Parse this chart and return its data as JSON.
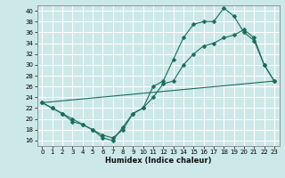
{
  "xlabel": "Humidex (Indice chaleur)",
  "bg_color": "#cce8e8",
  "grid_color": "#ffffff",
  "line_color": "#1a6b5a",
  "xlim": [
    -0.5,
    23.5
  ],
  "ylim": [
    15,
    41
  ],
  "yticks": [
    16,
    18,
    20,
    22,
    24,
    26,
    28,
    30,
    32,
    34,
    36,
    38,
    40
  ],
  "xticks": [
    0,
    1,
    2,
    3,
    4,
    5,
    6,
    7,
    8,
    9,
    10,
    11,
    12,
    13,
    14,
    15,
    16,
    17,
    18,
    19,
    20,
    21,
    22,
    23
  ],
  "line1_x": [
    0,
    1,
    2,
    3,
    4,
    5,
    6,
    7,
    8,
    9,
    10,
    11,
    12,
    13,
    14,
    15,
    16,
    17,
    18,
    19,
    20,
    21,
    22,
    23
  ],
  "line1_y": [
    23,
    22,
    21,
    19.5,
    19,
    18,
    16.5,
    16,
    18.5,
    21,
    22,
    26,
    27,
    31,
    35,
    37.5,
    38,
    38,
    40.5,
    39,
    36,
    34.5,
    30,
    27
  ],
  "line2_x": [
    0,
    1,
    2,
    3,
    4,
    5,
    6,
    7,
    8,
    9,
    10,
    11,
    12,
    13,
    14,
    15,
    16,
    17,
    18,
    19,
    20,
    21,
    22,
    23
  ],
  "line2_y": [
    23,
    22,
    21,
    20,
    19,
    18,
    17,
    16.5,
    18,
    21,
    22,
    24,
    26.5,
    27,
    30,
    32,
    33.5,
    34,
    35,
    35.5,
    36.5,
    35,
    30,
    27
  ],
  "line3_x": [
    0,
    23
  ],
  "line3_y": [
    23,
    27
  ]
}
